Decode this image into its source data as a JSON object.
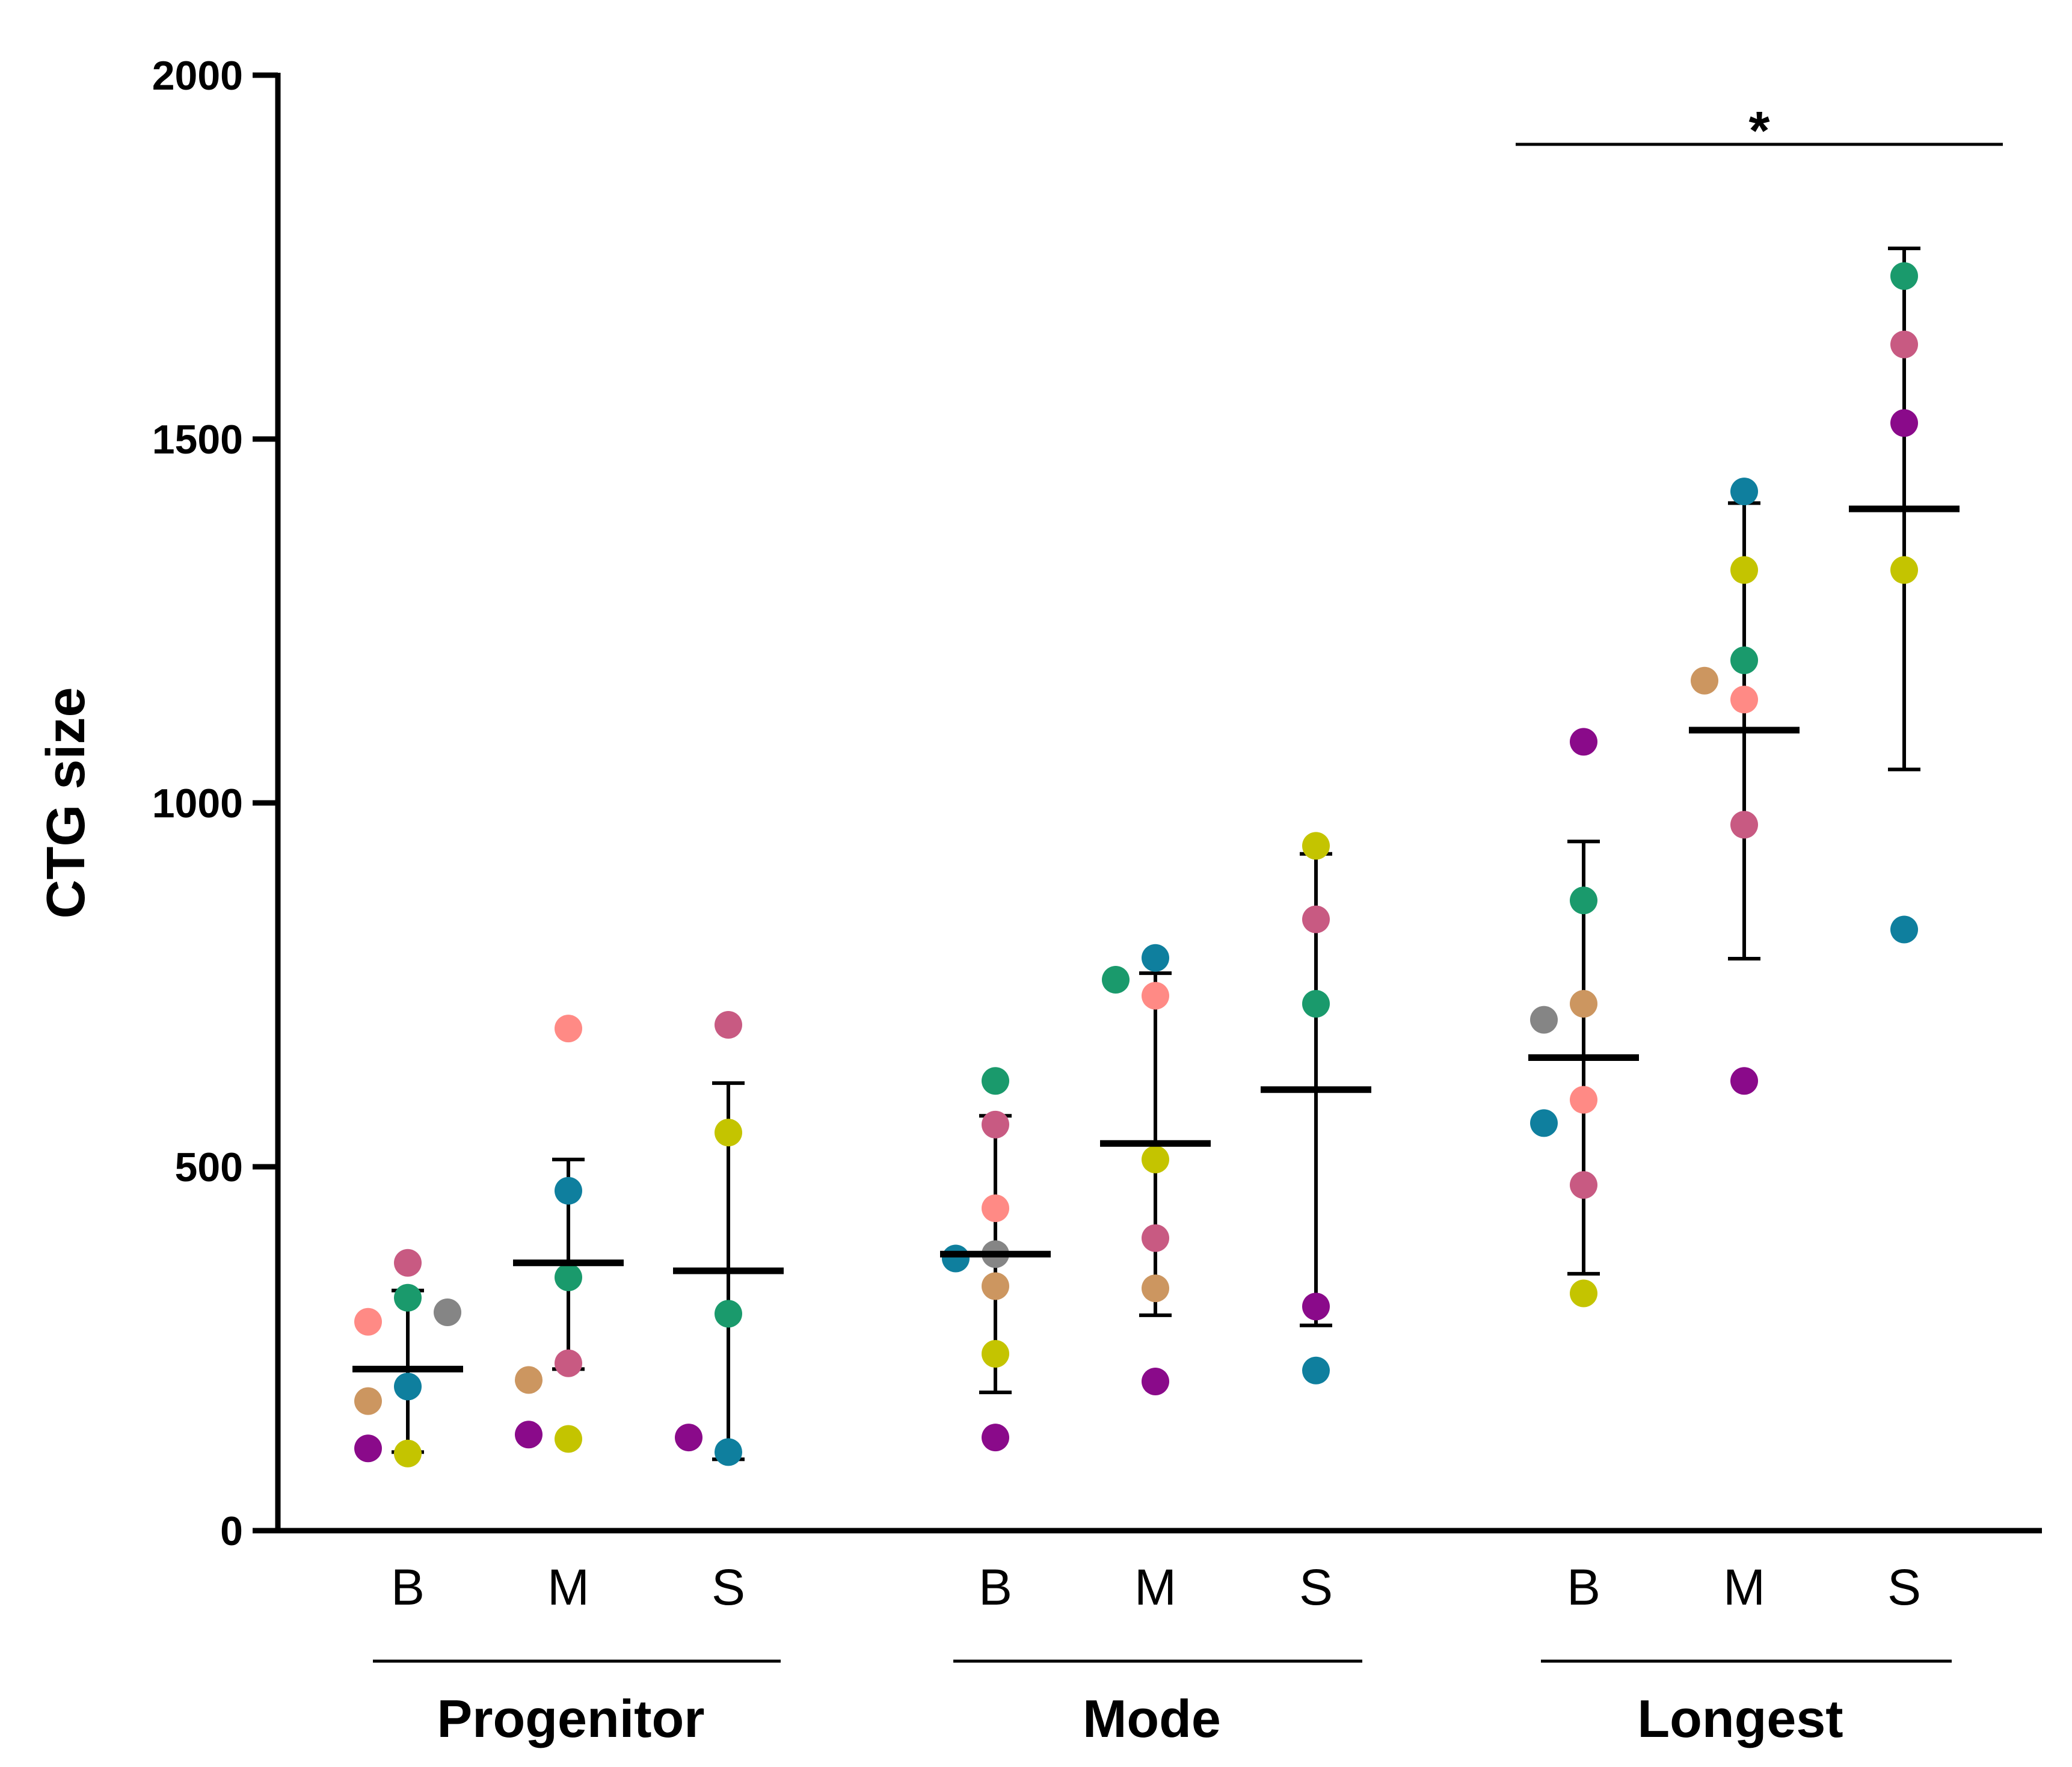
{
  "chart_data": {
    "type": "scatter",
    "title": "",
    "xlabel": "",
    "ylabel": "CTG size",
    "ylim": [
      0,
      2000
    ],
    "yticks": [
      0,
      500,
      1000,
      1500,
      2000
    ],
    "grid": false,
    "legend": "none",
    "significance": {
      "label": "*",
      "span": "Longest B–S"
    },
    "groups": [
      {
        "name": "Progenitor",
        "categories": [
          {
            "label": "B",
            "mean": 222,
            "err_low": 108,
            "err_high": 330,
            "points": [
              {
                "v": 320,
                "c": "#1a9a6c"
              },
              {
                "v": 368,
                "c": "#c85a82"
              },
              {
                "v": 287,
                "c": "#ff8a85"
              },
              {
                "v": 300,
                "c": "#858585"
              },
              {
                "v": 198,
                "c": "#0f7f9e"
              },
              {
                "v": 178,
                "c": "#cc9660"
              },
              {
                "v": 106,
                "c": "#c4c400"
              },
              {
                "v": 113,
                "c": "#8a0a8a"
              }
            ]
          },
          {
            "label": "M",
            "mean": 368,
            "err_low": 222,
            "err_high": 510,
            "points": [
              {
                "v": 690,
                "c": "#ff8a85"
              },
              {
                "v": 467,
                "c": "#0f7f9e"
              },
              {
                "v": 348,
                "c": "#1a9a6c"
              },
              {
                "v": 230,
                "c": "#c85a82"
              },
              {
                "v": 207,
                "c": "#cc9660"
              },
              {
                "v": 126,
                "c": "#c4c400"
              },
              {
                "v": 132,
                "c": "#8a0a8a"
              }
            ]
          },
          {
            "label": "S",
            "mean": 357,
            "err_low": 98,
            "err_high": 615,
            "points": [
              {
                "v": 695,
                "c": "#c85a82"
              },
              {
                "v": 547,
                "c": "#c4c400"
              },
              {
                "v": 298,
                "c": "#1a9a6c"
              },
              {
                "v": 108,
                "c": "#0f7f9e"
              },
              {
                "v": 128,
                "c": "#8a0a8a"
              }
            ]
          }
        ]
      },
      {
        "name": "Mode",
        "categories": [
          {
            "label": "B",
            "mean": 380,
            "err_low": 190,
            "err_high": 570,
            "points": [
              {
                "v": 618,
                "c": "#1a9a6c"
              },
              {
                "v": 558,
                "c": "#c85a82"
              },
              {
                "v": 443,
                "c": "#ff8a85"
              },
              {
                "v": 380,
                "c": "#858585"
              },
              {
                "v": 374,
                "c": "#0f7f9e"
              },
              {
                "v": 336,
                "c": "#cc9660"
              },
              {
                "v": 243,
                "c": "#c4c400"
              },
              {
                "v": 128,
                "c": "#8a0a8a"
              }
            ]
          },
          {
            "label": "M",
            "mean": 532,
            "err_low": 296,
            "err_high": 766,
            "points": [
              {
                "v": 787,
                "c": "#0f7f9e"
              },
              {
                "v": 757,
                "c": "#1a9a6c"
              },
              {
                "v": 735,
                "c": "#ff8a85"
              },
              {
                "v": 510,
                "c": "#c4c400"
              },
              {
                "v": 402,
                "c": "#c85a82"
              },
              {
                "v": 333,
                "c": "#cc9660"
              },
              {
                "v": 205,
                "c": "#8a0a8a"
              }
            ]
          },
          {
            "label": "S",
            "mean": 606,
            "err_low": 282,
            "err_high": 930,
            "points": [
              {
                "v": 941,
                "c": "#c4c400"
              },
              {
                "v": 840,
                "c": "#c85a82"
              },
              {
                "v": 724,
                "c": "#1a9a6c"
              },
              {
                "v": 308,
                "c": "#8a0a8a"
              },
              {
                "v": 220,
                "c": "#0f7f9e"
              }
            ]
          }
        ]
      },
      {
        "name": "Longest",
        "categories": [
          {
            "label": "B",
            "mean": 650,
            "err_low": 353,
            "err_high": 947,
            "points": [
              {
                "v": 1084,
                "c": "#8a0a8a"
              },
              {
                "v": 866,
                "c": "#1a9a6c"
              },
              {
                "v": 724,
                "c": "#cc9660"
              },
              {
                "v": 702,
                "c": "#858585"
              },
              {
                "v": 592,
                "c": "#ff8a85"
              },
              {
                "v": 560,
                "c": "#0f7f9e"
              },
              {
                "v": 475,
                "c": "#c85a82"
              },
              {
                "v": 326,
                "c": "#c4c400"
              }
            ]
          },
          {
            "label": "M",
            "mean": 1100,
            "err_low": 786,
            "err_high": 1412,
            "points": [
              {
                "v": 1428,
                "c": "#0f7f9e"
              },
              {
                "v": 1320,
                "c": "#c4c400"
              },
              {
                "v": 1196,
                "c": "#1a9a6c"
              },
              {
                "v": 1168,
                "c": "#cc9660"
              },
              {
                "v": 1142,
                "c": "#ff8a85"
              },
              {
                "v": 970,
                "c": "#c85a82"
              },
              {
                "v": 618,
                "c": "#8a0a8a"
              }
            ]
          },
          {
            "label": "S",
            "mean": 1404,
            "err_low": 1046,
            "err_high": 1762,
            "points": [
              {
                "v": 1724,
                "c": "#1a9a6c"
              },
              {
                "v": 1630,
                "c": "#c85a82"
              },
              {
                "v": 1522,
                "c": "#8a0a8a"
              },
              {
                "v": 1320,
                "c": "#c4c400"
              },
              {
                "v": 826,
                "c": "#0f7f9e"
              }
            ]
          }
        ]
      }
    ]
  }
}
